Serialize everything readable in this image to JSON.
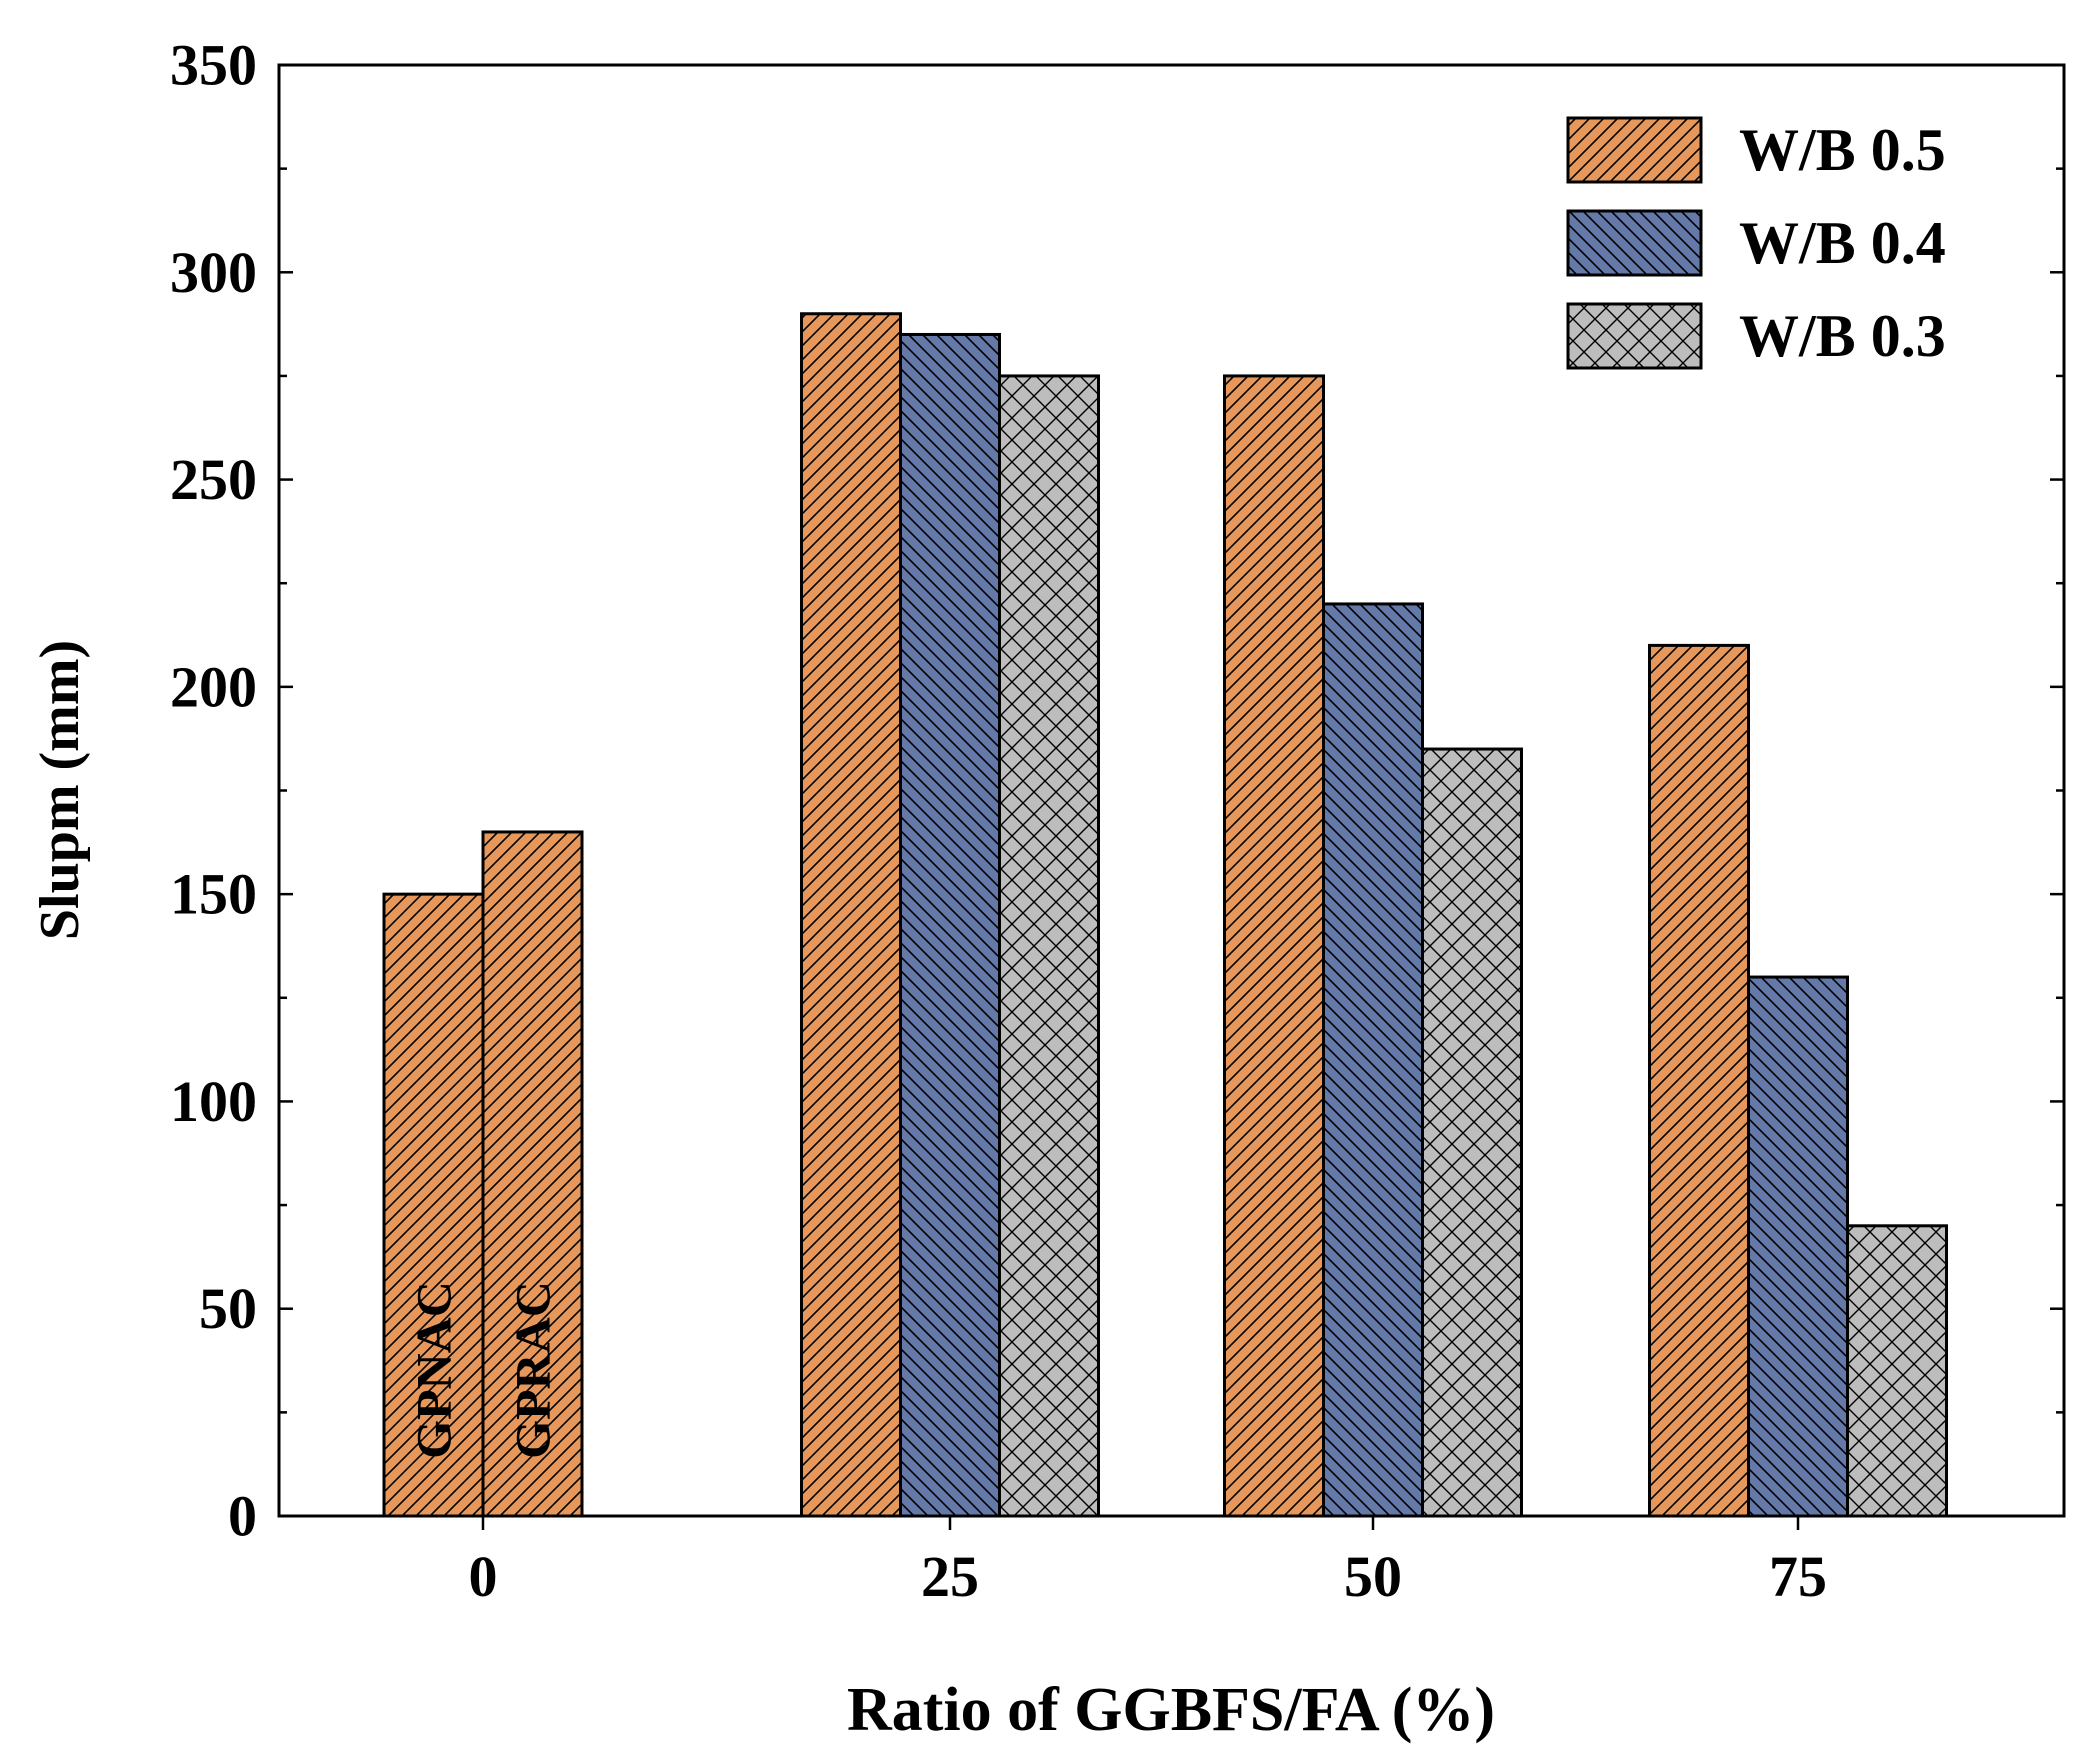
{
  "chart_data": {
    "type": "bar",
    "title": "",
    "xlabel": "Ratio of GGBFS/FA (%)",
    "ylabel": "Slupm (mm)",
    "ylim": [
      0,
      350
    ],
    "yticks": [
      0,
      50,
      100,
      150,
      200,
      250,
      300,
      350
    ],
    "grid": false,
    "legend_position": "top-right",
    "categories": [
      "0",
      "25",
      "50",
      "75"
    ],
    "control_bars": {
      "category": "0",
      "items": [
        {
          "name": "GPNAC",
          "value": 150
        },
        {
          "name": "GPRAC",
          "value": 165
        }
      ]
    },
    "series": [
      {
        "name": "W/B 0.5",
        "color": "#E8975A",
        "pattern": "forward-diagonal",
        "values": [
          null,
          290,
          275,
          210
        ]
      },
      {
        "name": "W/B 0.4",
        "color": "#6479A8",
        "pattern": "backward-diagonal",
        "values": [
          null,
          285,
          220,
          130
        ]
      },
      {
        "name": "W/B 0.3",
        "color": "#BDBDBD",
        "pattern": "crosshatch",
        "values": [
          null,
          275,
          185,
          70
        ]
      }
    ]
  }
}
